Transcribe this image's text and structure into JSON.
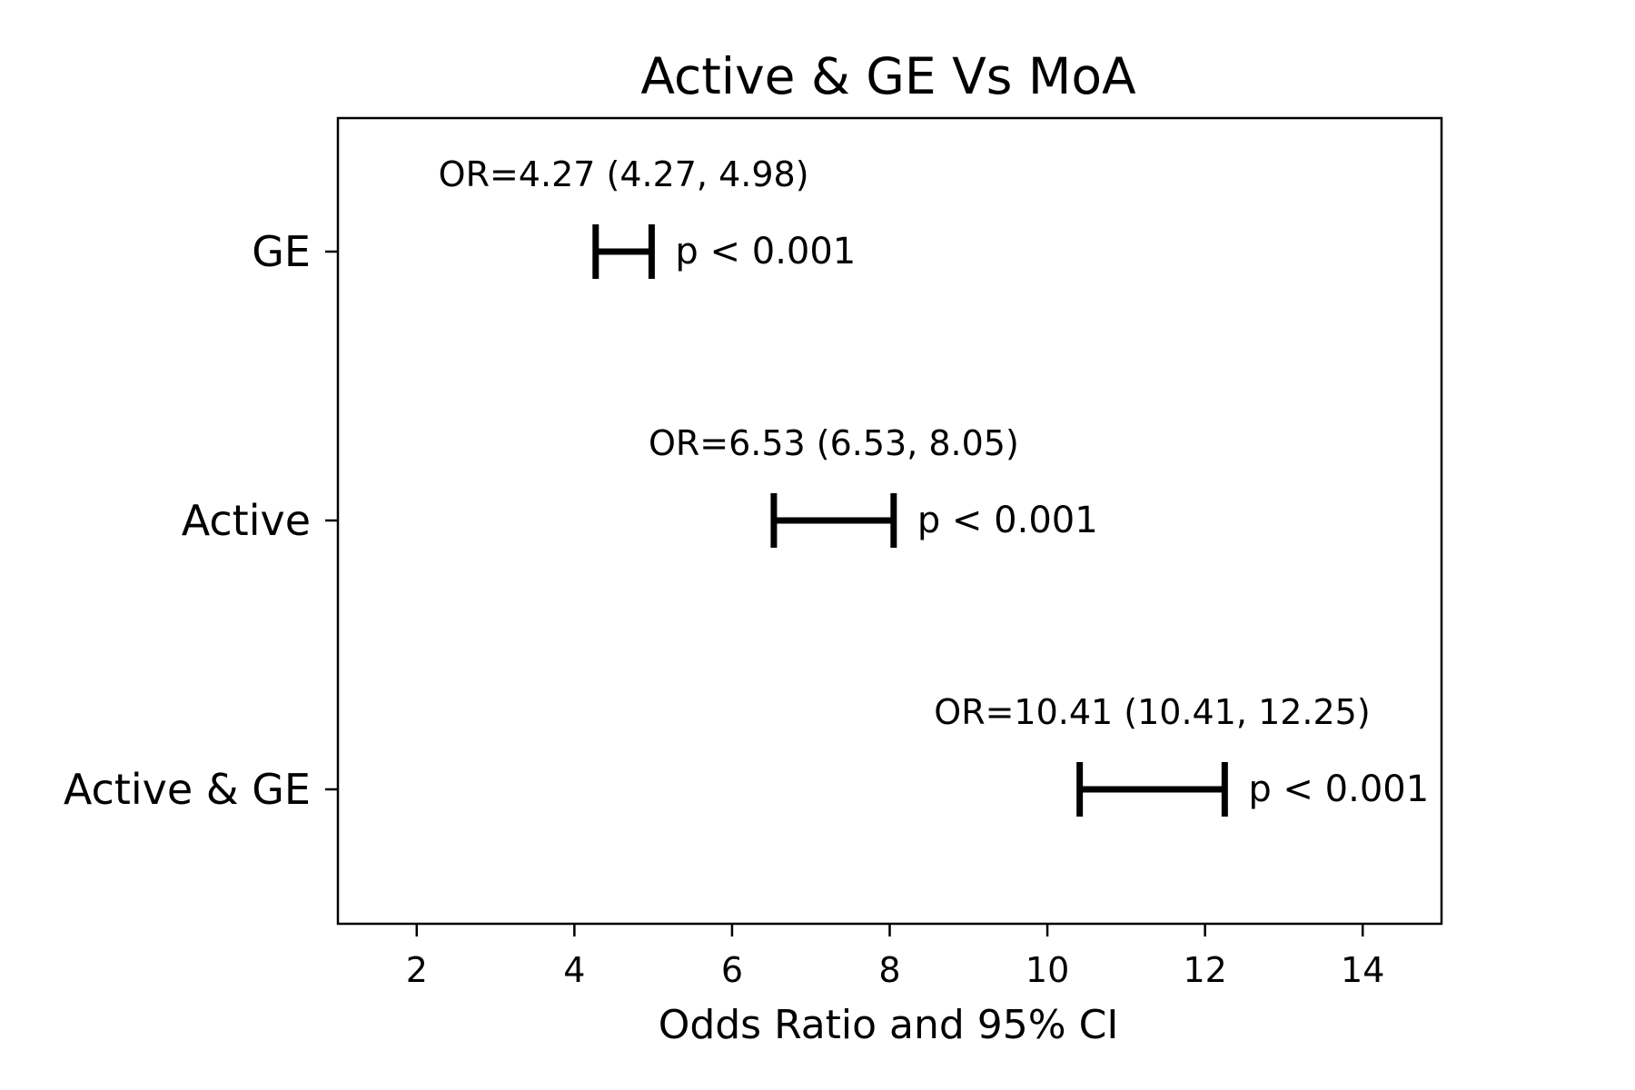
{
  "chart_data": {
    "type": "forest",
    "title": "Active & GE Vs MoA",
    "xlabel": "Odds Ratio and 95% CI",
    "ylabel": "",
    "xlim": [
      1,
      15
    ],
    "xticks": [
      2,
      4,
      6,
      8,
      10,
      12,
      14
    ],
    "categories": [
      "GE",
      "Active",
      "Active & GE"
    ],
    "series": [
      {
        "name": "GE",
        "or": 4.27,
        "ci_low": 4.27,
        "ci_high": 4.98,
        "or_label": "OR=4.27 (4.27, 4.98)",
        "p_label": "p < 0.001"
      },
      {
        "name": "Active",
        "or": 6.53,
        "ci_low": 6.53,
        "ci_high": 8.05,
        "or_label": "OR=6.53 (6.53, 8.05)",
        "p_label": "p < 0.001"
      },
      {
        "name": "Active & GE",
        "or": 10.41,
        "ci_low": 10.41,
        "ci_high": 12.25,
        "or_label": "OR=10.41 (10.41, 12.25)",
        "p_label": "p < 0.001"
      }
    ],
    "reference_line": 1,
    "grid": false
  },
  "colors": {
    "ink": "#000000",
    "background": "#ffffff"
  }
}
